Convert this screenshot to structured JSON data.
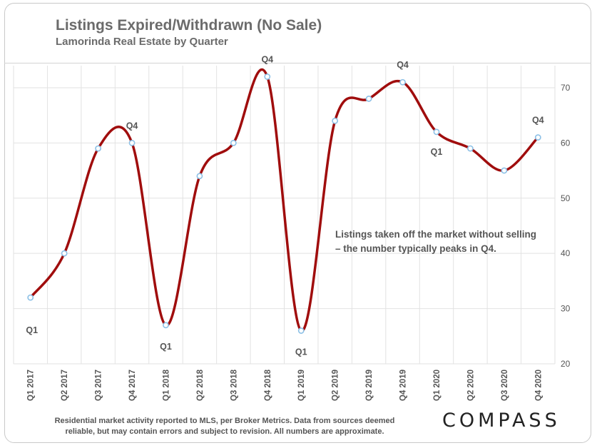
{
  "header": {
    "title": "Listings Expired/Withdrawn (No Sale)",
    "subtitle": "Lamorinda Real Estate by Quarter"
  },
  "annotation": {
    "line1": "Listings taken off the market without selling",
    "line2": "– the number typically peaks in Q4."
  },
  "footer": {
    "line1": "Residential market activity reported to MLS, per Broker Metrics. Data from sources deemed",
    "line2": "reliable, but may contain errors and subject to revision. All numbers are approximate."
  },
  "logo": "COMPASS",
  "chart_data": {
    "type": "line",
    "title": "Listings Expired/Withdrawn (No Sale)",
    "subtitle": "Lamorinda Real Estate by Quarter",
    "categories": [
      "Q1 2017",
      "Q2 2017",
      "Q3 2017",
      "Q4 2017",
      "Q1 2018",
      "Q2 2018",
      "Q3 2018",
      "Q4 2018",
      "Q1 2019",
      "Q2 2019",
      "Q3 2019",
      "Q4 2019",
      "Q1 2020",
      "Q2 2020",
      "Q3 2020",
      "Q4 2020"
    ],
    "series": [
      {
        "values": [
          32,
          40,
          59,
          60,
          27,
          54,
          60,
          72,
          26,
          64,
          68,
          71,
          62,
          59,
          55,
          61
        ],
        "color": "#a00d0d"
      }
    ],
    "ylim": [
      20,
      74
    ],
    "yticks": [
      20,
      30,
      40,
      50,
      60,
      70
    ],
    "y_axis_side": "right",
    "grid": true,
    "marker_color": "#8cc0e6",
    "point_labels": [
      {
        "index": 0,
        "text": "Q1",
        "position": "below"
      },
      {
        "index": 3,
        "text": "Q4",
        "position": "above"
      },
      {
        "index": 4,
        "text": "Q1",
        "position": "below"
      },
      {
        "index": 7,
        "text": "Q4",
        "position": "above"
      },
      {
        "index": 8,
        "text": "Q1",
        "position": "below"
      },
      {
        "index": 11,
        "text": "Q4",
        "position": "above"
      },
      {
        "index": 12,
        "text": "Q1",
        "position": "below"
      },
      {
        "index": 15,
        "text": "Q4",
        "position": "above"
      }
    ]
  }
}
